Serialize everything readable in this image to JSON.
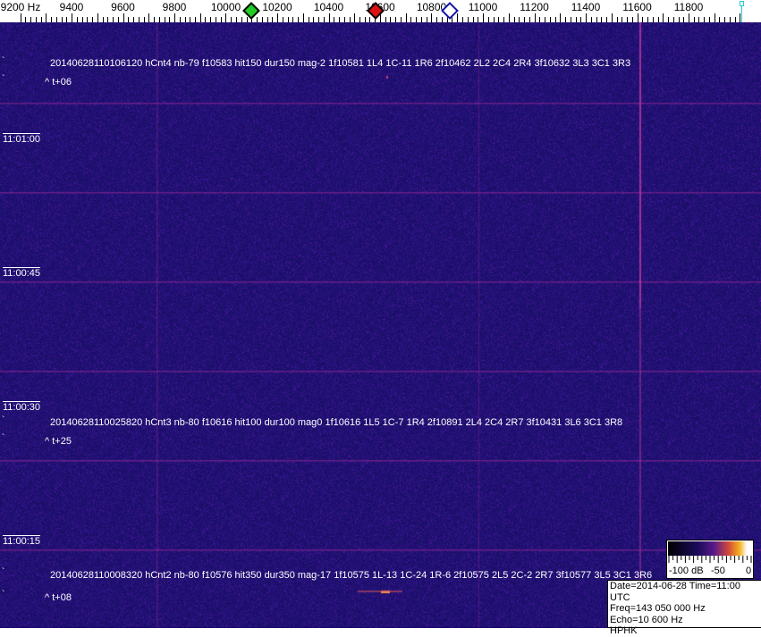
{
  "frequency_axis": {
    "labels": [
      "9200 Hz",
      "9400",
      "9600",
      "9800",
      "10000",
      "10200",
      "10400",
      "10600",
      "10800",
      "11000",
      "11200",
      "11400",
      "11600",
      "11800"
    ],
    "values": [
      9200,
      9400,
      9600,
      9800,
      10000,
      10200,
      10400,
      10600,
      10800,
      11000,
      11200,
      11400,
      11600,
      11800
    ]
  },
  "markers": [
    {
      "name": "green-marker",
      "freq": 10100,
      "color": "#22cc22"
    },
    {
      "name": "red-marker",
      "freq": 10583,
      "color": "#dd1111"
    },
    {
      "name": "blue-marker",
      "freq": 10870,
      "color": "#1111aa"
    },
    {
      "name": "cyan-cursor",
      "freq": 11990,
      "color": "#22cccc"
    }
  ],
  "events": [
    {
      "text": "20140628110106120 hCnt4 nb-79 f10583 hit150 dur150 mag-2 1f10581 1L4 1C-11 1R6 2f10462 2L2 2C4 2R4 3f10632 3L3 3C1 3R3",
      "offset": "^ t+06"
    },
    {
      "text": "20140628110025820 hCnt3 nb-80 f10616 hit100 dur100 mag0 1f10616 1L5 1C-7 1R4 2f10891 2L4 2C4 2R7 3f10431 3L6 3C1 3R8",
      "offset": "^ t+25"
    },
    {
      "text": "20140628110008320 hCnt2 nb-80 f10576 hit350 dur350 mag-17 1f10575 1L-13 1C-24 1R-6 2f10575 2L5 2C-2 2R7 3f10577 3L5 3C1 3R6",
      "offset": "^ t+08"
    }
  ],
  "time_labels": [
    "11:01:00",
    "11:00:45",
    "11:00:30",
    "11:00:15"
  ],
  "legend": {
    "labels": [
      "-100 dB",
      "-50",
      "0"
    ]
  },
  "info": {
    "date_time": "Date=2014-06-28 Time=11:00 UTC",
    "freq": "Freq=143 050 000 Hz",
    "echo": "Echo=10 600 Hz",
    "station": "HPHK"
  },
  "colors": {
    "background": "#1e0f6e",
    "gridline": "#7a2a8a",
    "text": "#ffffff"
  }
}
